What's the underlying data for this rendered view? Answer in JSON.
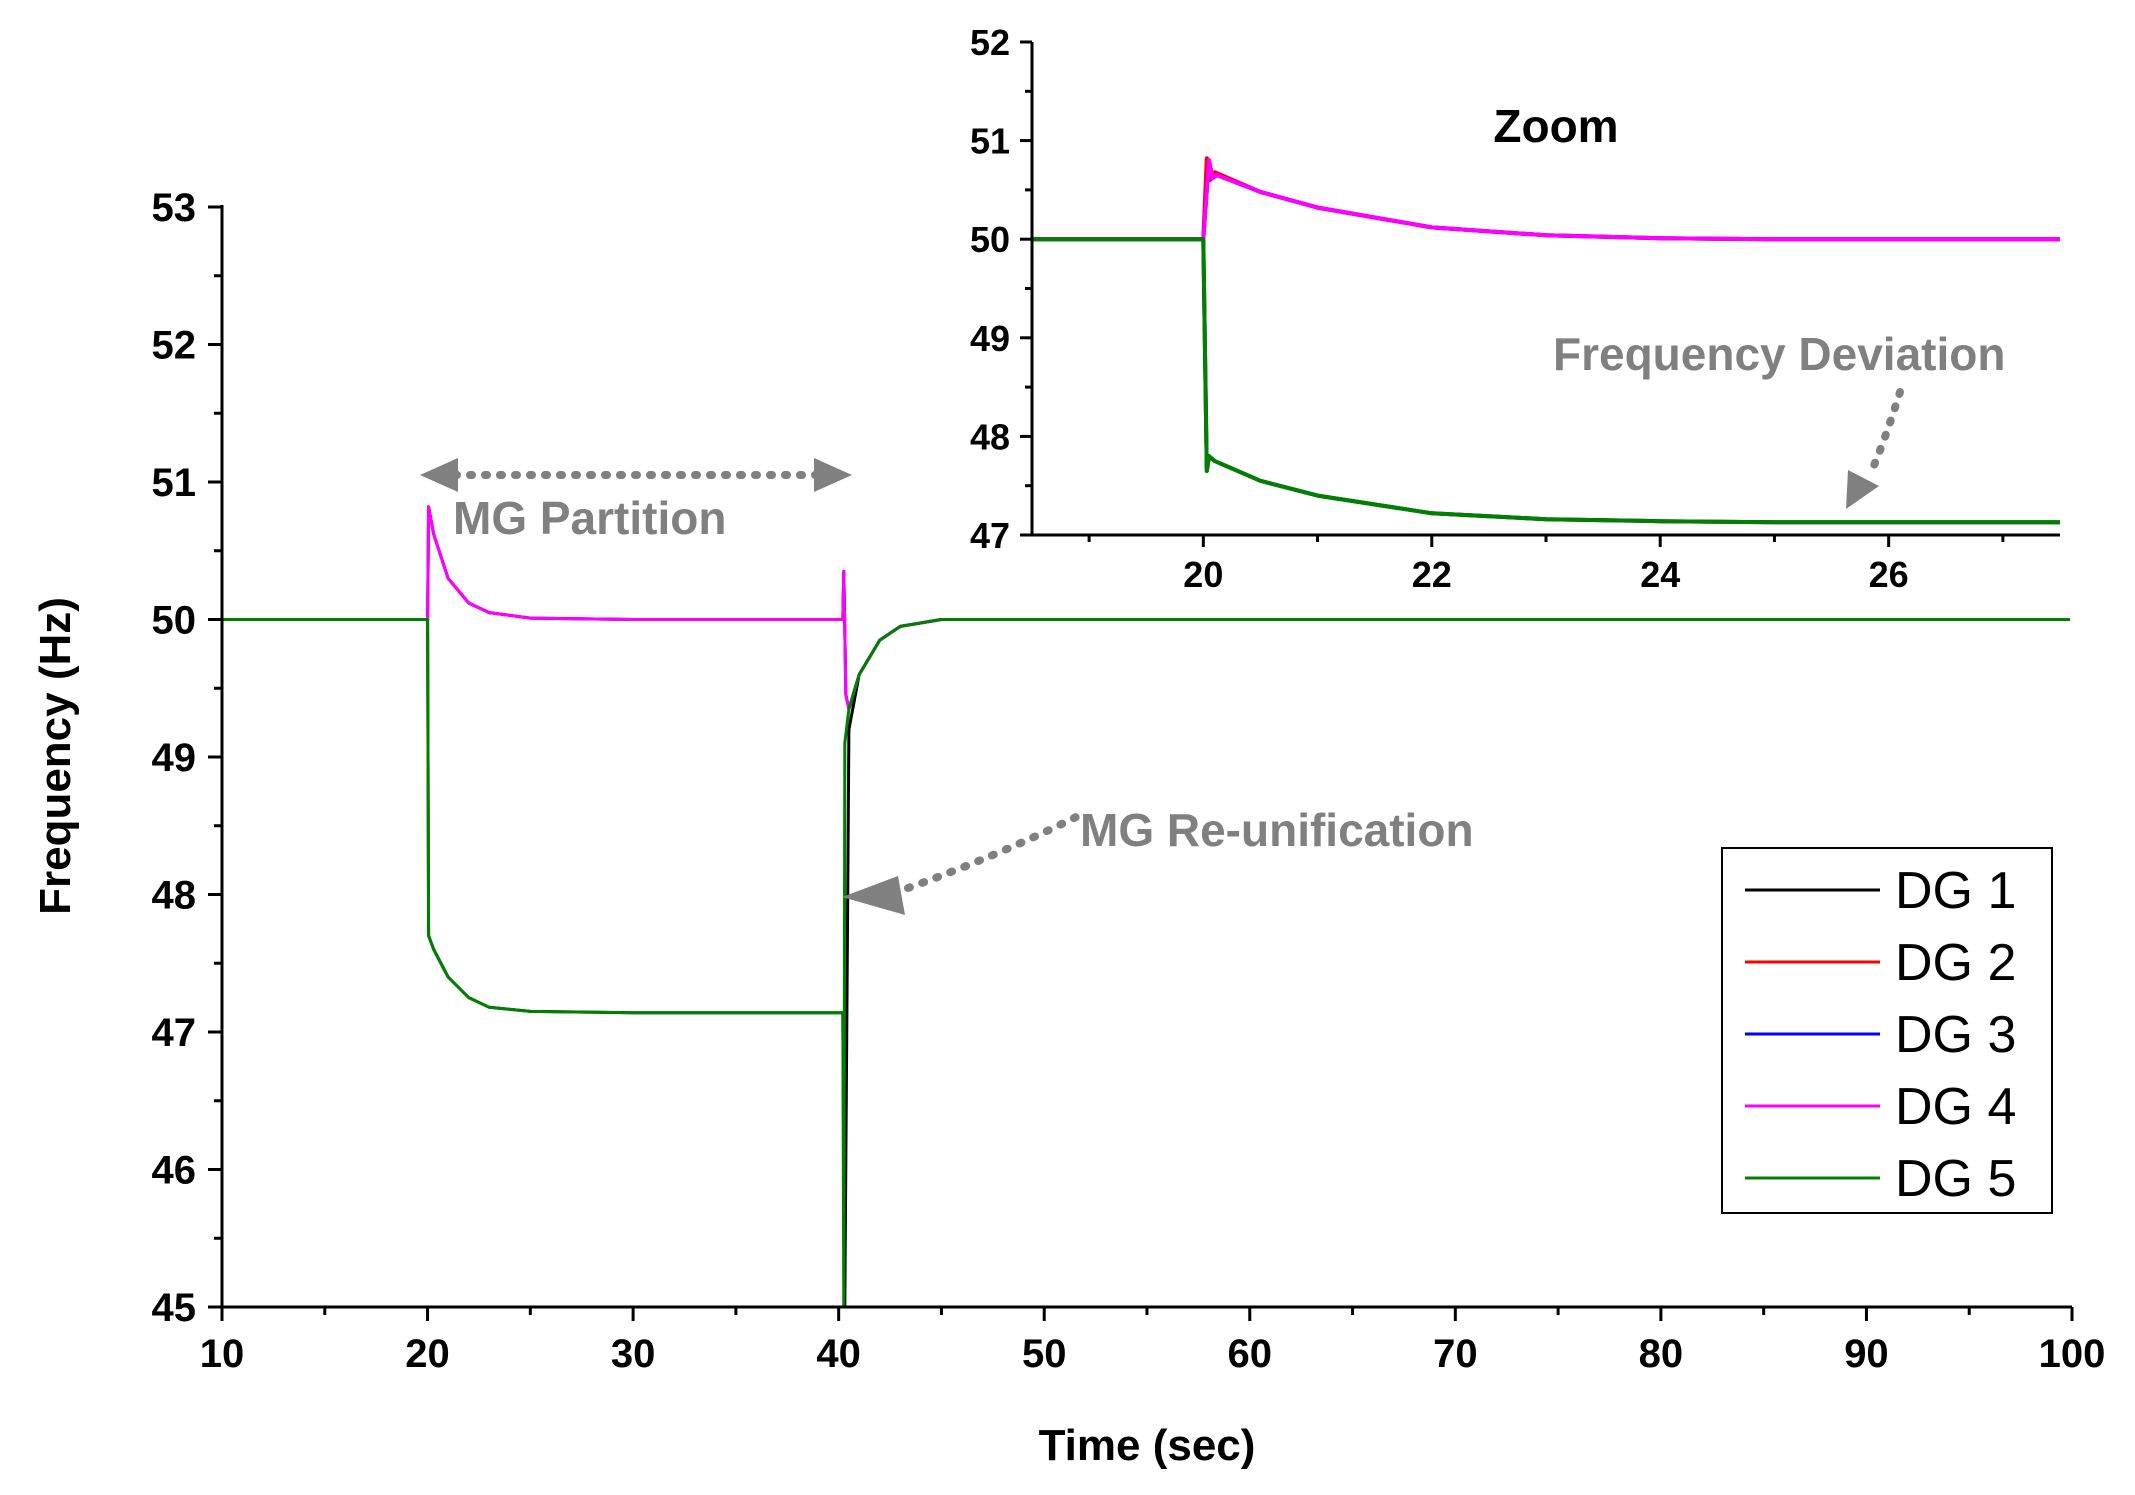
{
  "chart_data": [
    {
      "type": "line",
      "name": "main",
      "title": "",
      "xlabel": "Time (sec)",
      "ylabel": "Frequency (Hz)",
      "xlim": [
        10,
        100
      ],
      "ylim": [
        45,
        53
      ],
      "xticks": [
        10,
        20,
        30,
        40,
        50,
        60,
        70,
        80,
        90,
        100
      ],
      "yticks": [
        45,
        46,
        47,
        48,
        49,
        50,
        51,
        52,
        53
      ],
      "grid": false,
      "legend_position": "bottom-right",
      "series": [
        {
          "name": "DG 1",
          "color": "#000000",
          "x": [
            10,
            20,
            20.05,
            20.3,
            21,
            22,
            23,
            25,
            30,
            40.2,
            40.3,
            40.5,
            41,
            42,
            43,
            45,
            50,
            100
          ],
          "y": [
            50,
            50,
            47.7,
            47.6,
            47.4,
            47.25,
            47.18,
            47.15,
            47.14,
            47.14,
            45.0,
            49.2,
            49.6,
            49.85,
            49.95,
            50,
            50,
            50
          ]
        },
        {
          "name": "DG 2",
          "color": "#ff0000",
          "x": [
            10,
            20,
            20.05,
            20.3,
            21,
            22,
            23,
            25,
            30,
            40.2,
            40.25,
            40.35,
            40.5,
            41,
            42,
            43,
            45,
            100
          ],
          "y": [
            50,
            50,
            50.82,
            50.62,
            50.3,
            50.12,
            50.05,
            50.01,
            50,
            50,
            50.35,
            49.45,
            49.35,
            49.6,
            49.85,
            49.95,
            50,
            50
          ]
        },
        {
          "name": "DG 3",
          "color": "#0000ff",
          "x": [
            10,
            20,
            20.05,
            20.3,
            21,
            22,
            23,
            25,
            30,
            40.2,
            40.25,
            40.35,
            40.5,
            41,
            42,
            43,
            45,
            100
          ],
          "y": [
            50,
            50,
            50.82,
            50.62,
            50.3,
            50.12,
            50.05,
            50.01,
            50,
            50,
            50.35,
            49.45,
            49.35,
            49.6,
            49.85,
            49.95,
            50,
            50
          ]
        },
        {
          "name": "DG 4",
          "color": "#ff00ff",
          "x": [
            10,
            20,
            20.05,
            20.3,
            21,
            22,
            23,
            25,
            30,
            40.2,
            40.25,
            40.35,
            40.5,
            41,
            42,
            43,
            45,
            100
          ],
          "y": [
            50,
            50,
            50.82,
            50.62,
            50.3,
            50.12,
            50.05,
            50.01,
            50,
            50,
            50.35,
            49.45,
            49.35,
            49.6,
            49.85,
            49.95,
            50,
            50
          ]
        },
        {
          "name": "DG 5",
          "color": "#008000",
          "x": [
            10,
            20,
            20.05,
            20.3,
            21,
            22,
            23,
            25,
            30,
            40.2,
            40.25,
            40.3,
            40.5,
            41,
            42,
            43,
            45,
            50,
            100
          ],
          "y": [
            50,
            50,
            47.7,
            47.6,
            47.4,
            47.25,
            47.18,
            47.15,
            47.14,
            47.14,
            45.0,
            49.1,
            49.35,
            49.6,
            49.85,
            49.95,
            50,
            50,
            50
          ]
        }
      ],
      "legend": [
        "DG 1",
        "DG 2",
        "DG 3",
        "DG 4",
        "DG 5"
      ],
      "annotations": [
        {
          "text": "MG Partition",
          "arrow": "double-headed",
          "from_x": 20,
          "to_x": 40,
          "at_y": 51.05
        },
        {
          "text": "MG Re-unification",
          "arrow_to_x": 40.2,
          "arrow_to_y": 48
        }
      ]
    },
    {
      "type": "line",
      "name": "inset",
      "title": "Zoom",
      "xlim": [
        18.5,
        27.5
      ],
      "ylim": [
        47,
        52
      ],
      "xticks": [
        20,
        22,
        24,
        26
      ],
      "yticks": [
        47,
        48,
        49,
        50,
        51,
        52
      ],
      "series": [
        {
          "name": "DG 1",
          "color": "#000000",
          "x": [
            18.5,
            20,
            20.03,
            20.05,
            20.1,
            20.5,
            21,
            22,
            23,
            24,
            25,
            27.5
          ],
          "y": [
            50,
            50,
            47.65,
            47.8,
            47.75,
            47.55,
            47.4,
            47.22,
            47.16,
            47.14,
            47.13,
            47.13
          ]
        },
        {
          "name": "DG 2",
          "color": "#ff0000",
          "x": [
            18.5,
            20,
            20.03,
            20.06,
            20.1,
            20.5,
            21,
            22,
            23,
            24,
            25,
            27.5
          ],
          "y": [
            50,
            50,
            50.82,
            50.6,
            50.68,
            50.48,
            50.32,
            50.12,
            50.04,
            50.01,
            50,
            50
          ]
        },
        {
          "name": "DG 3",
          "color": "#0000ff",
          "x": [
            18.5,
            20,
            20.05,
            20.08,
            20.12,
            20.5,
            21,
            22,
            23,
            24,
            25,
            27.5
          ],
          "y": [
            50,
            50,
            50.8,
            50.62,
            50.65,
            50.48,
            50.32,
            50.12,
            50.04,
            50.01,
            50,
            50
          ]
        },
        {
          "name": "DG 4",
          "color": "#ff00ff",
          "x": [
            18.5,
            20,
            20.05,
            20.08,
            20.12,
            20.5,
            21,
            22,
            23,
            24,
            25,
            27.5
          ],
          "y": [
            50,
            50,
            50.8,
            50.62,
            50.65,
            50.48,
            50.32,
            50.12,
            50.04,
            50.01,
            50,
            50
          ]
        },
        {
          "name": "DG 5",
          "color": "#008000",
          "x": [
            18.5,
            20,
            20.03,
            20.05,
            20.1,
            20.5,
            21,
            22,
            23,
            24,
            25,
            27.5
          ],
          "y": [
            50,
            50,
            47.65,
            47.8,
            47.75,
            47.55,
            47.4,
            47.22,
            47.16,
            47.14,
            47.13,
            47.13
          ]
        }
      ],
      "annotations": [
        {
          "text": "Frequency Deviation",
          "arrow_to_x": 25.6,
          "arrow_to_y": 47.18
        }
      ]
    }
  ]
}
